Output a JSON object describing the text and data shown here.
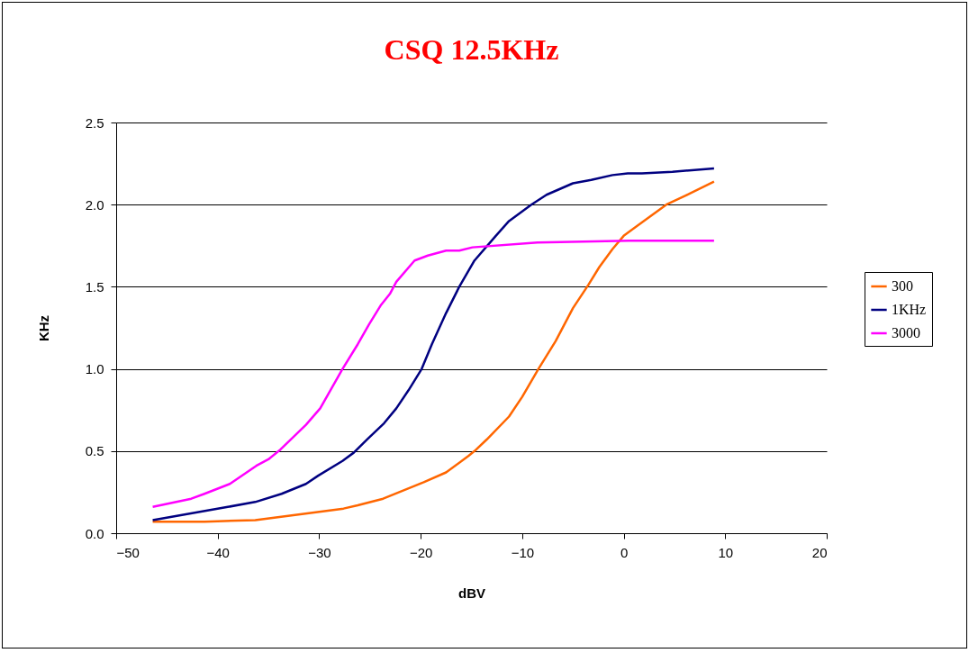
{
  "chart_data": {
    "type": "line",
    "title": "CSQ 12.5KHz",
    "xlabel": "dBV",
    "ylabel": "KHz",
    "xlim": [
      -50,
      20
    ],
    "xticks": [
      -50,
      -40,
      -30,
      -20,
      -10,
      0,
      10,
      20
    ],
    "ylim": [
      0,
      2.5
    ],
    "yticks": [
      {
        "value": 0,
        "label": "0.0"
      },
      {
        "value": 0.5,
        "label": "0.5"
      },
      {
        "value": 1,
        "label": "1.0"
      },
      {
        "value": 1.5,
        "label": "1.5"
      },
      {
        "value": 2,
        "label": "2.0"
      },
      {
        "value": 2.5,
        "label": "2.5"
      }
    ],
    "grid": "y",
    "legend": "right",
    "marker": "none",
    "line_style": "solid",
    "series": [
      {
        "name": "300",
        "color": "#ff6600",
        "x": [
          -46.4,
          -41.3,
          -36.3,
          -27.6,
          -26.2,
          -23.7,
          -19.7,
          -17.5,
          -15.3,
          -14.7,
          -13.5,
          -11.3,
          -10.0,
          -8.4,
          -6.7,
          -5.0,
          -3.5,
          -2.4,
          -1.1,
          0.0,
          1.3,
          4.2,
          6.6,
          8.9
        ],
        "values": [
          0.07,
          0.07,
          0.08,
          0.15,
          0.17,
          0.21,
          0.31,
          0.37,
          0.47,
          0.5,
          0.57,
          0.71,
          0.83,
          1.0,
          1.17,
          1.37,
          1.51,
          1.62,
          1.73,
          1.81,
          1.87,
          2.0,
          2.07,
          2.14
        ]
      },
      {
        "name": "1KHz",
        "color": "#000080",
        "x": [
          -46.4,
          -39.0,
          -36.3,
          -33.7,
          -31.3,
          -30.1,
          -27.7,
          -26.6,
          -25.3,
          -23.6,
          -22.4,
          -21.2,
          -19.9,
          -18.9,
          -17.5,
          -16.2,
          -14.7,
          -12.6,
          -11.3,
          -9.1,
          -7.6,
          -5.0,
          -3.2,
          -1.1,
          0.4,
          1.8,
          4.8,
          8.9
        ],
        "values": [
          0.08,
          0.16,
          0.19,
          0.24,
          0.3,
          0.35,
          0.44,
          0.49,
          0.57,
          0.67,
          0.76,
          0.87,
          1.0,
          1.15,
          1.34,
          1.5,
          1.66,
          1.81,
          1.9,
          2.0,
          2.06,
          2.13,
          2.15,
          2.18,
          2.19,
          2.19,
          2.2,
          2.22
        ]
      },
      {
        "name": "3000",
        "color": "#ff00ff",
        "x": [
          -46.4,
          -42.6,
          -41.3,
          -38.8,
          -36.2,
          -35.0,
          -33.8,
          -31.3,
          -29.9,
          -27.7,
          -26.2,
          -25.1,
          -23.9,
          -23.0,
          -22.4,
          -20.6,
          -19.3,
          -17.5,
          -16.2,
          -14.9,
          -8.5,
          0.5,
          8.9
        ],
        "values": [
          0.16,
          0.21,
          0.24,
          0.3,
          0.41,
          0.45,
          0.51,
          0.66,
          0.76,
          1.0,
          1.15,
          1.27,
          1.39,
          1.46,
          1.53,
          1.66,
          1.69,
          1.72,
          1.72,
          1.74,
          1.77,
          1.78,
          1.78
        ]
      }
    ]
  }
}
